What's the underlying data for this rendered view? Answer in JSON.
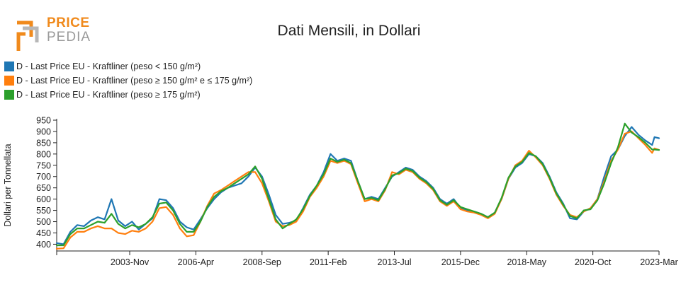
{
  "logo": {
    "line1": "PRICE",
    "line2": "PEDIA",
    "colors": [
      "#f08a1c",
      "#9a9a9a"
    ]
  },
  "chart_data": {
    "type": "line",
    "title": "Dati Mensili, in Dollari",
    "ylabel": "Dollari per Tonnellata",
    "xlabel": "",
    "ylim": [
      370,
      950
    ],
    "yticks": [
      400,
      450,
      500,
      550,
      600,
      650,
      700,
      750,
      800,
      850,
      900,
      950
    ],
    "x_start": "2001-03",
    "x_end": "2023-03",
    "xticks": [
      "2003-Nov",
      "2006-Apr",
      "2008-Sep",
      "2011-Feb",
      "2013-Jul",
      "2015-Dec",
      "2018-May",
      "2020-Oct",
      "2023-Mar"
    ],
    "xtick_dates": [
      "2003-11",
      "2006-04",
      "2008-09",
      "2011-02",
      "2013-07",
      "2015-12",
      "2018-05",
      "2020-10",
      "2023-03"
    ],
    "grid": false,
    "legend_position": "top-left",
    "series": [
      {
        "name": "D - Last Price EU - Kraftliner (peso < 150 g/m²)",
        "color": "#1f77b4",
        "points": [
          [
            "2001-03",
            405
          ],
          [
            "2001-06",
            400
          ],
          [
            "2001-09",
            455
          ],
          [
            "2001-12",
            485
          ],
          [
            "2002-03",
            480
          ],
          [
            "2002-06",
            505
          ],
          [
            "2002-09",
            520
          ],
          [
            "2002-12",
            510
          ],
          [
            "2003-03",
            600
          ],
          [
            "2003-06",
            505
          ],
          [
            "2003-09",
            480
          ],
          [
            "2003-12",
            500
          ],
          [
            "2004-03",
            465
          ],
          [
            "2004-06",
            490
          ],
          [
            "2004-09",
            515
          ],
          [
            "2004-12",
            600
          ],
          [
            "2005-03",
            595
          ],
          [
            "2005-06",
            560
          ],
          [
            "2005-09",
            500
          ],
          [
            "2005-12",
            475
          ],
          [
            "2006-03",
            465
          ],
          [
            "2006-06",
            510
          ],
          [
            "2006-09",
            560
          ],
          [
            "2006-12",
            600
          ],
          [
            "2007-03",
            630
          ],
          [
            "2007-06",
            650
          ],
          [
            "2007-09",
            660
          ],
          [
            "2007-12",
            670
          ],
          [
            "2008-03",
            700
          ],
          [
            "2008-06",
            740
          ],
          [
            "2008-09",
            700
          ],
          [
            "2008-12",
            620
          ],
          [
            "2009-03",
            530
          ],
          [
            "2009-06",
            490
          ],
          [
            "2009-09",
            495
          ],
          [
            "2009-12",
            505
          ],
          [
            "2010-03",
            560
          ],
          [
            "2010-06",
            620
          ],
          [
            "2010-09",
            660
          ],
          [
            "2010-12",
            720
          ],
          [
            "2011-03",
            800
          ],
          [
            "2011-06",
            770
          ],
          [
            "2011-09",
            780
          ],
          [
            "2011-12",
            770
          ],
          [
            "2012-03",
            680
          ],
          [
            "2012-06",
            600
          ],
          [
            "2012-09",
            610
          ],
          [
            "2012-12",
            600
          ],
          [
            "2013-03",
            650
          ],
          [
            "2013-06",
            700
          ],
          [
            "2013-09",
            720
          ],
          [
            "2013-12",
            740
          ],
          [
            "2014-03",
            730
          ],
          [
            "2014-06",
            700
          ],
          [
            "2014-09",
            680
          ],
          [
            "2014-12",
            650
          ],
          [
            "2015-03",
            600
          ],
          [
            "2015-06",
            580
          ],
          [
            "2015-09",
            600
          ],
          [
            "2015-12",
            560
          ],
          [
            "2016-03",
            550
          ],
          [
            "2016-06",
            545
          ],
          [
            "2016-09",
            535
          ],
          [
            "2016-12",
            520
          ],
          [
            "2017-03",
            540
          ],
          [
            "2017-06",
            600
          ],
          [
            "2017-09",
            690
          ],
          [
            "2017-12",
            740
          ],
          [
            "2018-03",
            760
          ],
          [
            "2018-06",
            800
          ],
          [
            "2018-09",
            790
          ],
          [
            "2018-12",
            760
          ],
          [
            "2019-03",
            700
          ],
          [
            "2019-06",
            630
          ],
          [
            "2019-09",
            580
          ],
          [
            "2019-12",
            515
          ],
          [
            "2020-03",
            510
          ],
          [
            "2020-06",
            545
          ],
          [
            "2020-09",
            560
          ],
          [
            "2020-12",
            600
          ],
          [
            "2021-03",
            700
          ],
          [
            "2021-06",
            790
          ],
          [
            "2021-09",
            820
          ],
          [
            "2021-12",
            880
          ],
          [
            "2022-03",
            920
          ],
          [
            "2022-06",
            885
          ],
          [
            "2022-09",
            860
          ],
          [
            "2022-12",
            840
          ],
          [
            "2023-01",
            875
          ],
          [
            "2023-03",
            870
          ]
        ]
      },
      {
        "name": "D - Last Price EU - Kraftliner (peso ≥ 150 g/m² e ≤ 175 g/m²)",
        "color": "#ff7f0e",
        "points": [
          [
            "2001-03",
            380
          ],
          [
            "2001-06",
            382
          ],
          [
            "2001-09",
            430
          ],
          [
            "2001-12",
            455
          ],
          [
            "2002-03",
            455
          ],
          [
            "2002-06",
            470
          ],
          [
            "2002-09",
            480
          ],
          [
            "2002-12",
            470
          ],
          [
            "2003-03",
            470
          ],
          [
            "2003-06",
            450
          ],
          [
            "2003-09",
            445
          ],
          [
            "2003-12",
            460
          ],
          [
            "2004-03",
            455
          ],
          [
            "2004-06",
            470
          ],
          [
            "2004-09",
            500
          ],
          [
            "2004-12",
            560
          ],
          [
            "2005-03",
            565
          ],
          [
            "2005-06",
            530
          ],
          [
            "2005-09",
            470
          ],
          [
            "2005-12",
            435
          ],
          [
            "2006-03",
            440
          ],
          [
            "2006-06",
            500
          ],
          [
            "2006-09",
            570
          ],
          [
            "2006-12",
            625
          ],
          [
            "2007-03",
            640
          ],
          [
            "2007-06",
            660
          ],
          [
            "2007-09",
            680
          ],
          [
            "2007-12",
            700
          ],
          [
            "2008-03",
            720
          ],
          [
            "2008-06",
            720
          ],
          [
            "2008-09",
            670
          ],
          [
            "2008-12",
            590
          ],
          [
            "2009-03",
            500
          ],
          [
            "2009-06",
            480
          ],
          [
            "2009-09",
            485
          ],
          [
            "2009-12",
            500
          ],
          [
            "2010-03",
            545
          ],
          [
            "2010-06",
            610
          ],
          [
            "2010-09",
            650
          ],
          [
            "2010-12",
            700
          ],
          [
            "2011-03",
            770
          ],
          [
            "2011-06",
            760
          ],
          [
            "2011-09",
            770
          ],
          [
            "2011-12",
            755
          ],
          [
            "2012-03",
            670
          ],
          [
            "2012-06",
            590
          ],
          [
            "2012-09",
            600
          ],
          [
            "2012-12",
            590
          ],
          [
            "2013-03",
            640
          ],
          [
            "2013-06",
            720
          ],
          [
            "2013-09",
            710
          ],
          [
            "2013-12",
            730
          ],
          [
            "2014-03",
            720
          ],
          [
            "2014-06",
            690
          ],
          [
            "2014-09",
            670
          ],
          [
            "2014-12",
            640
          ],
          [
            "2015-03",
            590
          ],
          [
            "2015-06",
            570
          ],
          [
            "2015-09",
            590
          ],
          [
            "2015-12",
            555
          ],
          [
            "2016-03",
            545
          ],
          [
            "2016-06",
            540
          ],
          [
            "2016-09",
            530
          ],
          [
            "2016-12",
            515
          ],
          [
            "2017-03",
            535
          ],
          [
            "2017-06",
            600
          ],
          [
            "2017-09",
            690
          ],
          [
            "2017-12",
            750
          ],
          [
            "2018-03",
            770
          ],
          [
            "2018-06",
            815
          ],
          [
            "2018-09",
            785
          ],
          [
            "2018-12",
            750
          ],
          [
            "2019-03",
            690
          ],
          [
            "2019-06",
            620
          ],
          [
            "2019-09",
            570
          ],
          [
            "2019-12",
            530
          ],
          [
            "2020-03",
            520
          ],
          [
            "2020-06",
            545
          ],
          [
            "2020-09",
            560
          ],
          [
            "2020-12",
            600
          ],
          [
            "2021-03",
            680
          ],
          [
            "2021-06",
            770
          ],
          [
            "2021-09",
            820
          ],
          [
            "2021-12",
            890
          ],
          [
            "2022-03",
            900
          ],
          [
            "2022-06",
            870
          ],
          [
            "2022-09",
            840
          ],
          [
            "2022-12",
            805
          ],
          [
            "2023-01",
            825
          ],
          [
            "2023-03",
            818
          ]
        ]
      },
      {
        "name": "D - Last Price EU - Kraftliner (peso ≥ 175 g/m²)",
        "color": "#2ca02c",
        "points": [
          [
            "2001-03",
            395
          ],
          [
            "2001-06",
            395
          ],
          [
            "2001-09",
            445
          ],
          [
            "2001-12",
            470
          ],
          [
            "2002-03",
            470
          ],
          [
            "2002-06",
            485
          ],
          [
            "2002-09",
            500
          ],
          [
            "2002-12",
            495
          ],
          [
            "2003-03",
            535
          ],
          [
            "2003-06",
            490
          ],
          [
            "2003-09",
            470
          ],
          [
            "2003-12",
            485
          ],
          [
            "2004-03",
            475
          ],
          [
            "2004-06",
            490
          ],
          [
            "2004-09",
            520
          ],
          [
            "2004-12",
            580
          ],
          [
            "2005-03",
            585
          ],
          [
            "2005-06",
            550
          ],
          [
            "2005-09",
            490
          ],
          [
            "2005-12",
            455
          ],
          [
            "2006-03",
            455
          ],
          [
            "2006-06",
            500
          ],
          [
            "2006-09",
            565
          ],
          [
            "2006-12",
            610
          ],
          [
            "2007-03",
            635
          ],
          [
            "2007-06",
            650
          ],
          [
            "2007-09",
            670
          ],
          [
            "2007-12",
            690
          ],
          [
            "2008-03",
            710
          ],
          [
            "2008-06",
            745
          ],
          [
            "2008-09",
            690
          ],
          [
            "2008-12",
            600
          ],
          [
            "2009-03",
            510
          ],
          [
            "2009-06",
            470
          ],
          [
            "2009-09",
            490
          ],
          [
            "2009-12",
            510
          ],
          [
            "2010-03",
            555
          ],
          [
            "2010-06",
            615
          ],
          [
            "2010-09",
            660
          ],
          [
            "2010-12",
            710
          ],
          [
            "2011-03",
            780
          ],
          [
            "2011-06",
            765
          ],
          [
            "2011-09",
            775
          ],
          [
            "2011-12",
            760
          ],
          [
            "2012-03",
            680
          ],
          [
            "2012-06",
            600
          ],
          [
            "2012-09",
            605
          ],
          [
            "2012-12",
            595
          ],
          [
            "2013-03",
            645
          ],
          [
            "2013-06",
            705
          ],
          [
            "2013-09",
            715
          ],
          [
            "2013-12",
            735
          ],
          [
            "2014-03",
            725
          ],
          [
            "2014-06",
            695
          ],
          [
            "2014-09",
            675
          ],
          [
            "2014-12",
            645
          ],
          [
            "2015-03",
            595
          ],
          [
            "2015-06",
            575
          ],
          [
            "2015-09",
            595
          ],
          [
            "2015-12",
            565
          ],
          [
            "2016-03",
            555
          ],
          [
            "2016-06",
            545
          ],
          [
            "2016-09",
            535
          ],
          [
            "2016-12",
            520
          ],
          [
            "2017-03",
            540
          ],
          [
            "2017-06",
            605
          ],
          [
            "2017-09",
            695
          ],
          [
            "2017-12",
            745
          ],
          [
            "2018-03",
            765
          ],
          [
            "2018-06",
            805
          ],
          [
            "2018-09",
            790
          ],
          [
            "2018-12",
            755
          ],
          [
            "2019-03",
            695
          ],
          [
            "2019-06",
            625
          ],
          [
            "2019-09",
            575
          ],
          [
            "2019-12",
            525
          ],
          [
            "2020-03",
            515
          ],
          [
            "2020-06",
            550
          ],
          [
            "2020-09",
            555
          ],
          [
            "2020-12",
            595
          ],
          [
            "2021-03",
            670
          ],
          [
            "2021-06",
            760
          ],
          [
            "2021-09",
            830
          ],
          [
            "2021-12",
            935
          ],
          [
            "2022-03",
            895
          ],
          [
            "2022-06",
            875
          ],
          [
            "2022-09",
            850
          ],
          [
            "2022-12",
            820
          ],
          [
            "2023-01",
            820
          ],
          [
            "2023-03",
            818
          ]
        ]
      }
    ]
  }
}
